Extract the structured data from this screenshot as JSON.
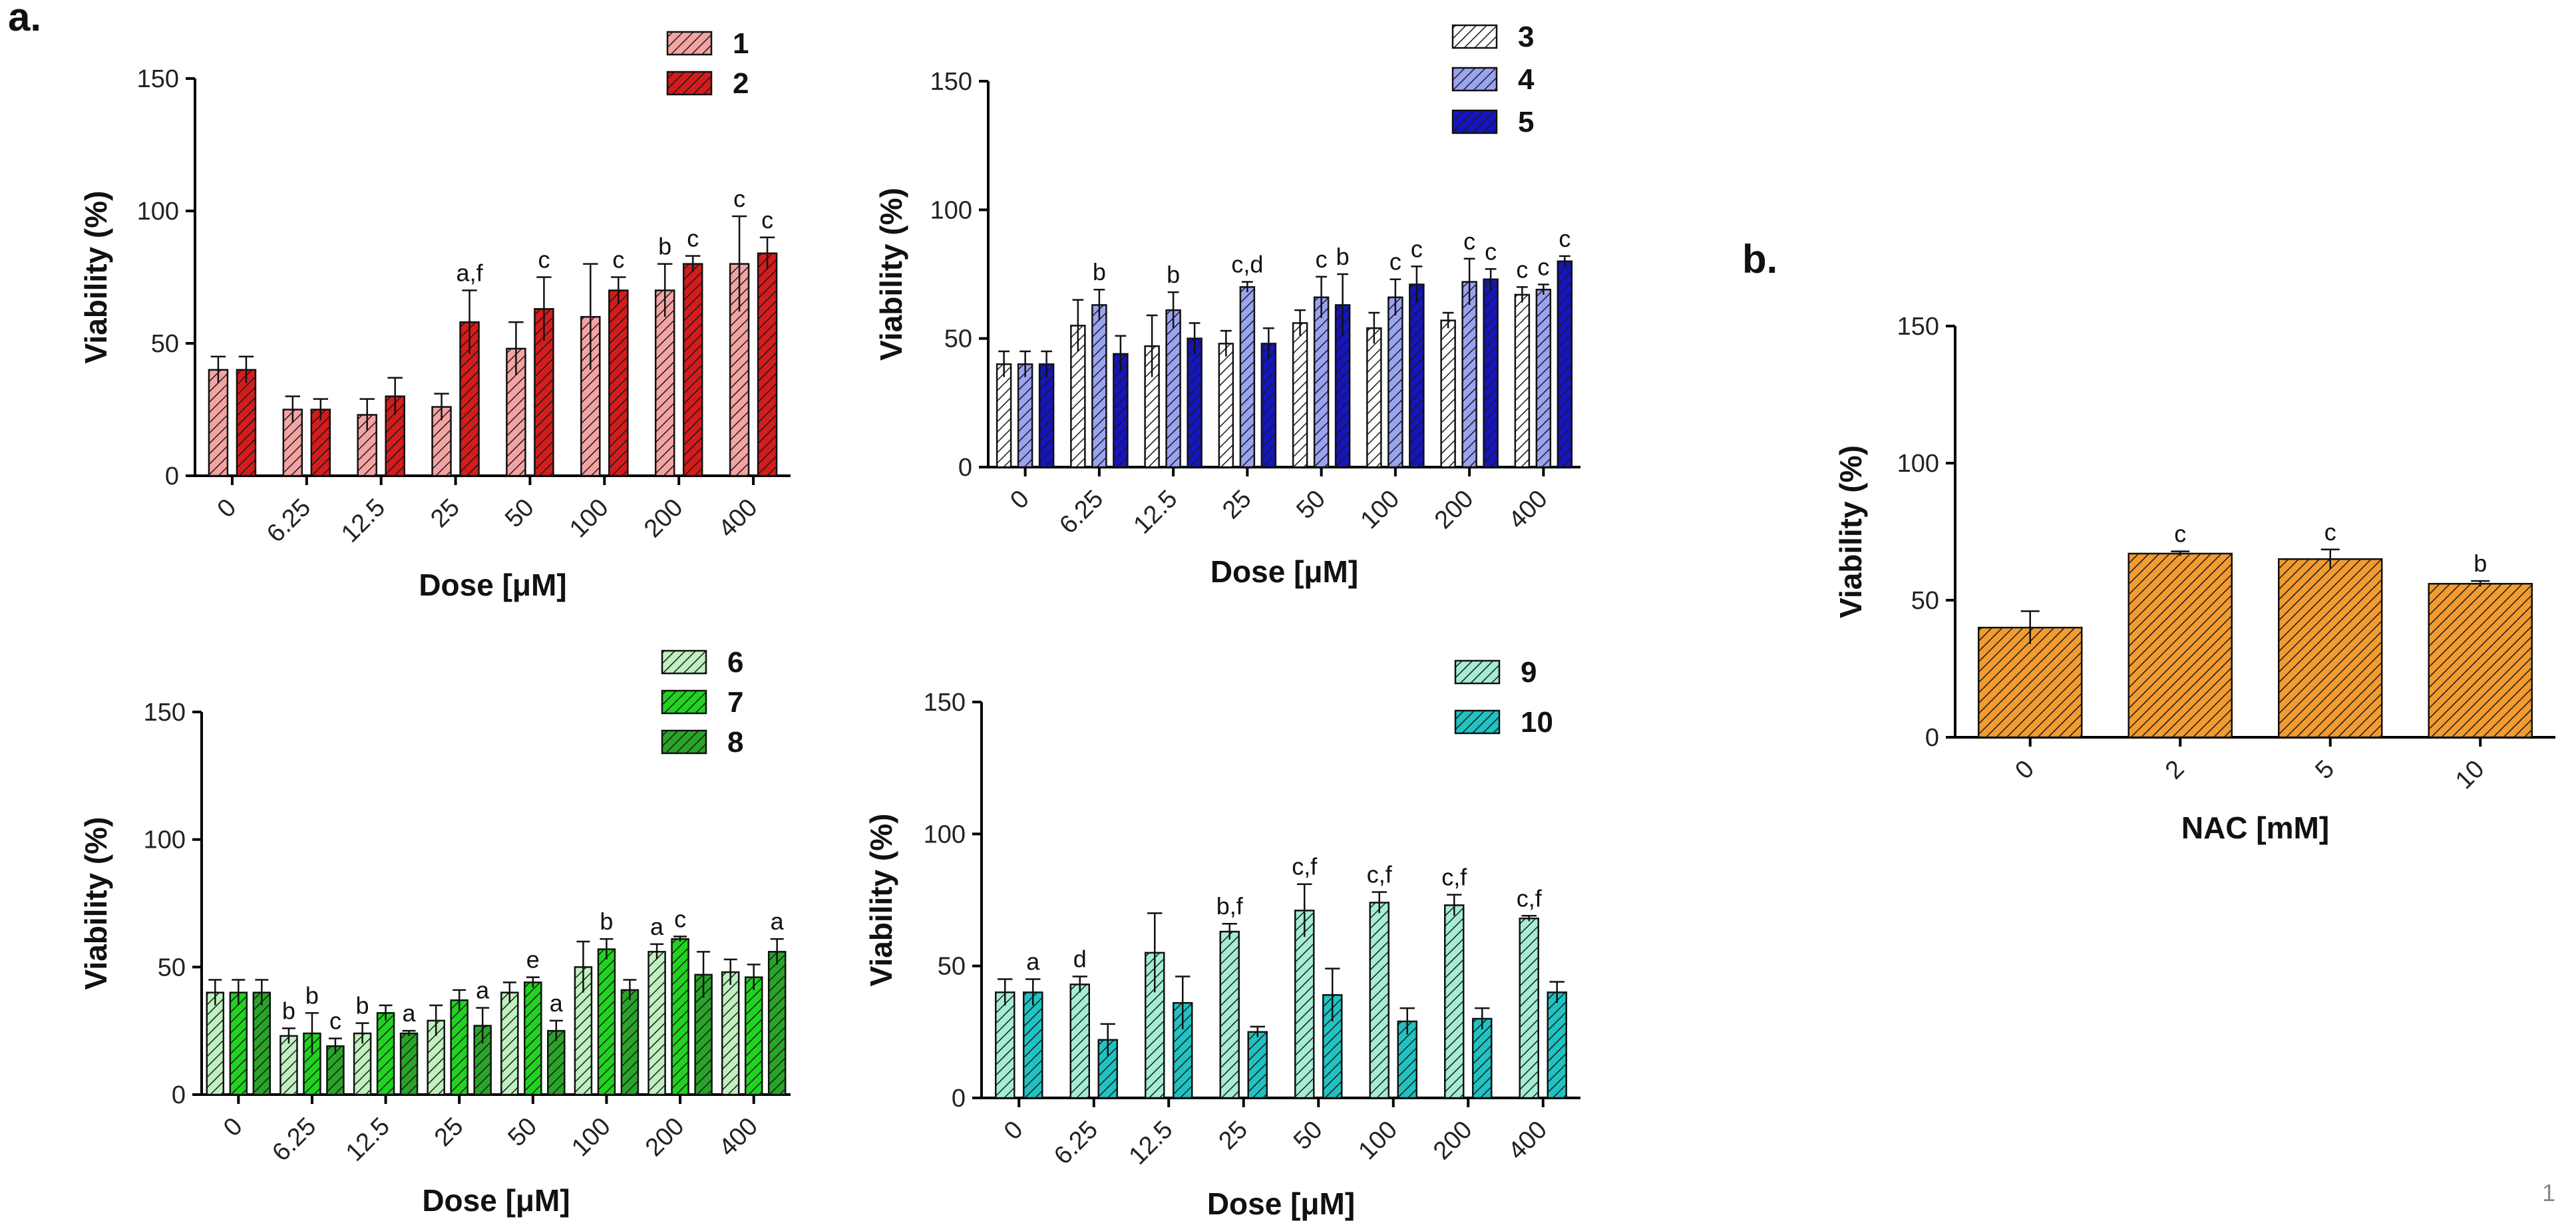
{
  "page": {
    "panel_a_label": "a.",
    "panel_b_label": "b.",
    "page_number": "1"
  },
  "colors": {
    "c1": "#f4a3a3",
    "c2": "#d41c1c",
    "c3": "#ffffff",
    "c4": "#9aa3f0",
    "c5": "#1515c0",
    "c6": "#bff0bf",
    "c7": "#21d321",
    "c8": "#28a428",
    "c9": "#a4ecd5",
    "c10": "#20c2c2",
    "nac": "#f29b30"
  },
  "chart_data": [
    {
      "type": "bar",
      "id": "chart1",
      "xlabel": "Dose [μM]",
      "ylabel": "Viability (%)",
      "ylim": [
        0,
        150
      ],
      "yticks": [
        "0",
        "50",
        "100",
        "150"
      ],
      "categories": [
        "0",
        "6.25",
        "12.5",
        "25",
        "50",
        "100",
        "200",
        "400"
      ],
      "series": [
        {
          "name": "1",
          "color": "c1",
          "values": [
            40,
            25,
            23,
            26,
            48,
            60,
            70,
            80
          ],
          "errors": [
            5,
            5,
            6,
            5,
            10,
            20,
            10,
            18
          ],
          "labels": [
            "",
            "",
            "",
            "",
            "",
            "",
            "b",
            "c"
          ]
        },
        {
          "name": "2",
          "color": "c2",
          "values": [
            40,
            25,
            30,
            58,
            63,
            70,
            80,
            84
          ],
          "errors": [
            5,
            4,
            7,
            12,
            12,
            5,
            3,
            6
          ],
          "labels": [
            "",
            "",
            "",
            "a,f",
            "c",
            "c",
            "c",
            "c"
          ]
        }
      ]
    },
    {
      "type": "bar",
      "id": "chart2",
      "xlabel": "Dose [μM]",
      "ylabel": "Viability (%)",
      "ylim": [
        0,
        150
      ],
      "yticks": [
        "0",
        "50",
        "100",
        "150"
      ],
      "categories": [
        "0",
        "6.25",
        "12.5",
        "25",
        "50",
        "100",
        "200",
        "400"
      ],
      "series": [
        {
          "name": "3",
          "color": "c3",
          "values": [
            40,
            55,
            47,
            48,
            56,
            54,
            57,
            67
          ],
          "errors": [
            5,
            10,
            12,
            5,
            5,
            6,
            3,
            3
          ],
          "labels": [
            "",
            "",
            "",
            "",
            "",
            "",
            "",
            "c"
          ]
        },
        {
          "name": "4",
          "color": "c4",
          "values": [
            40,
            63,
            61,
            70,
            66,
            66,
            72,
            69
          ],
          "errors": [
            5,
            6,
            7,
            2,
            8,
            7,
            9,
            2
          ],
          "labels": [
            "",
            "b",
            "b",
            "c,d",
            "c",
            "c",
            "c",
            "c"
          ]
        },
        {
          "name": "5",
          "color": "c5",
          "values": [
            40,
            44,
            50,
            48,
            63,
            71,
            73,
            80
          ],
          "errors": [
            5,
            7,
            6,
            6,
            12,
            7,
            4,
            2
          ],
          "labels": [
            "",
            "",
            "",
            "",
            "b",
            "c",
            "c",
            "c"
          ]
        }
      ]
    },
    {
      "type": "bar",
      "id": "chart3",
      "xlabel": "Dose [μM]",
      "ylabel": "Viability (%)",
      "ylim": [
        0,
        150
      ],
      "yticks": [
        "0",
        "50",
        "100",
        "150"
      ],
      "categories": [
        "0",
        "6.25",
        "12.5",
        "25",
        "50",
        "100",
        "200",
        "400"
      ],
      "series": [
        {
          "name": "6",
          "color": "c6",
          "values": [
            40,
            23,
            24,
            29,
            40,
            50,
            56,
            48
          ],
          "errors": [
            5,
            3,
            4,
            6,
            4,
            10,
            3,
            5
          ],
          "labels": [
            "",
            "b",
            "b",
            "",
            "",
            "",
            "a",
            ""
          ]
        },
        {
          "name": "7",
          "color": "c7",
          "values": [
            40,
            24,
            32,
            37,
            44,
            57,
            61,
            46
          ],
          "errors": [
            5,
            8,
            3,
            4,
            2,
            4,
            1,
            5
          ],
          "labels": [
            "",
            "b",
            "",
            "",
            "e",
            "b",
            "c",
            ""
          ]
        },
        {
          "name": "8",
          "color": "c8",
          "values": [
            40,
            19,
            24,
            27,
            25,
            41,
            47,
            56
          ],
          "errors": [
            5,
            3,
            1,
            7,
            4,
            4,
            9,
            5
          ],
          "labels": [
            "",
            "c",
            "a",
            "a",
            "a",
            "",
            "",
            "a"
          ]
        }
      ]
    },
    {
      "type": "bar",
      "id": "chart4",
      "xlabel": "Dose [μM]",
      "ylabel": "Viability (%)",
      "ylim": [
        0,
        150
      ],
      "yticks": [
        "0",
        "50",
        "100",
        "150"
      ],
      "categories": [
        "0",
        "6.25",
        "12.5",
        "25",
        "50",
        "100",
        "200",
        "400"
      ],
      "series": [
        {
          "name": "9",
          "color": "c9",
          "values": [
            40,
            43,
            55,
            63,
            71,
            74,
            73,
            68
          ],
          "errors": [
            5,
            3,
            15,
            3,
            10,
            4,
            4,
            1
          ],
          "labels": [
            "",
            "d",
            "",
            "b,f",
            "c,f",
            "c,f",
            "c,f",
            "c,f"
          ]
        },
        {
          "name": "10",
          "color": "c10",
          "values": [
            40,
            22,
            36,
            25,
            39,
            29,
            30,
            40
          ],
          "errors": [
            5,
            6,
            10,
            2,
            10,
            5,
            4,
            4
          ],
          "labels": [
            "a",
            "",
            "",
            "",
            "",
            "",
            "",
            ""
          ]
        }
      ]
    },
    {
      "type": "bar",
      "id": "chart5",
      "xlabel": "NAC [mM]",
      "ylabel": "Viability (%)",
      "ylim": [
        0,
        150
      ],
      "yticks": [
        "0",
        "50",
        "100",
        "150"
      ],
      "categories": [
        "0",
        "2",
        "5",
        "10"
      ],
      "series": [
        {
          "name": "NAC",
          "color": "nac",
          "values": [
            40,
            67,
            65,
            56
          ],
          "errors": [
            6,
            0.8,
            3.5,
            1
          ],
          "labels": [
            "",
            "c",
            "c",
            "b"
          ]
        }
      ]
    }
  ]
}
